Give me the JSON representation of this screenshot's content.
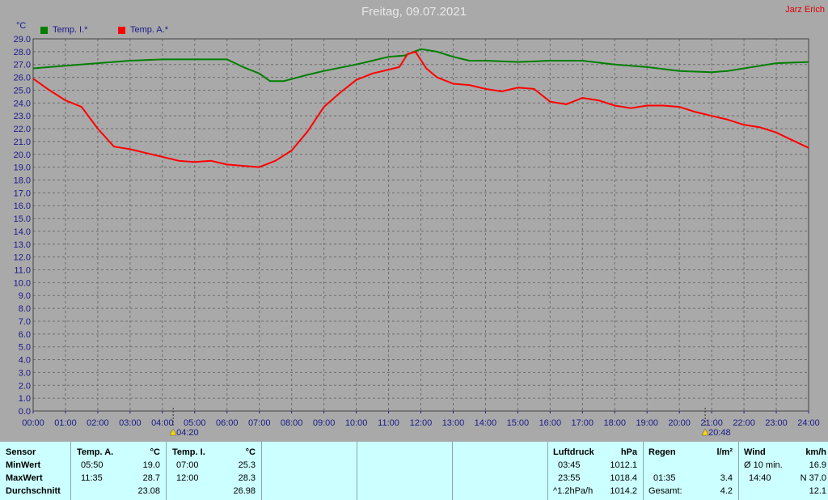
{
  "header": {
    "title": "Freitag, 09.07.2021",
    "author": "Jarz Erich",
    "unit": "°C"
  },
  "colors": {
    "background": "#a9a9a9",
    "inside": "#007f00",
    "outside": "#ff0000",
    "axis_text": "#1a1a8c",
    "table_bg": "#ccffff"
  },
  "chart_data": {
    "type": "line",
    "xlim": [
      "00:00",
      "24:00"
    ],
    "ylim": [
      0,
      29
    ],
    "ytick_step": 1.0,
    "grid": true,
    "legend_position": "top-left",
    "x_tick_labels": [
      "00:00",
      "01:00",
      "02:00",
      "03:00",
      "04:00",
      "05:00",
      "06:00",
      "07:00",
      "08:00",
      "09:00",
      "10:00",
      "11:00",
      "12:00",
      "13:00",
      "14:00",
      "15:00",
      "16:00",
      "17:00",
      "18:00",
      "19:00",
      "20:00",
      "21:00",
      "22:00",
      "23:00",
      "24:00"
    ],
    "y_tick_labels": [
      "0.0",
      "1.0",
      "2.0",
      "3.0",
      "4.0",
      "5.0",
      "6.0",
      "7.0",
      "8.0",
      "9.0",
      "10.0",
      "11.0",
      "12.0",
      "13.0",
      "14.0",
      "15.0",
      "16.0",
      "17.0",
      "18.0",
      "19.0",
      "20.0",
      "21.0",
      "22.0",
      "23.0",
      "24.0",
      "25.0",
      "26.0",
      "27.0",
      "28.0",
      "29.0"
    ],
    "markers": [
      {
        "label": "04:20",
        "x": "04:20"
      },
      {
        "label": "20:48",
        "x": "20:48"
      }
    ],
    "series": [
      {
        "name": "Temp. I.*",
        "color": "#007f00",
        "x": [
          "00:00",
          "01:00",
          "02:00",
          "03:00",
          "04:00",
          "05:00",
          "06:00",
          "06:30",
          "07:00",
          "07:20",
          "07:45",
          "08:30",
          "09:00",
          "10:00",
          "10:30",
          "11:00",
          "11:30",
          "12:00",
          "12:30",
          "13:00",
          "13:30",
          "14:00",
          "15:00",
          "16:00",
          "17:00",
          "18:00",
          "19:00",
          "20:00",
          "21:00",
          "21:30",
          "22:00",
          "22:30",
          "23:00",
          "24:00"
        ],
        "values": [
          26.7,
          26.9,
          27.1,
          27.3,
          27.4,
          27.4,
          27.4,
          26.8,
          26.3,
          25.7,
          25.7,
          26.2,
          26.5,
          27.0,
          27.3,
          27.6,
          27.7,
          28.2,
          28.0,
          27.6,
          27.3,
          27.3,
          27.2,
          27.3,
          27.3,
          27.0,
          26.8,
          26.5,
          26.4,
          26.5,
          26.7,
          26.9,
          27.1,
          27.2
        ]
      },
      {
        "name": "Temp. A.*",
        "color": "#ff0000",
        "x": [
          "00:00",
          "00:30",
          "01:00",
          "01:30",
          "02:00",
          "02:30",
          "03:00",
          "03:30",
          "04:00",
          "04:30",
          "05:00",
          "05:30",
          "06:00",
          "06:30",
          "07:00",
          "07:30",
          "08:00",
          "08:30",
          "09:00",
          "09:30",
          "10:00",
          "10:30",
          "11:00",
          "11:20",
          "11:35",
          "11:50",
          "12:10",
          "12:30",
          "13:00",
          "13:30",
          "14:00",
          "14:30",
          "15:00",
          "15:30",
          "16:00",
          "16:30",
          "17:00",
          "17:30",
          "18:00",
          "18:30",
          "19:00",
          "19:30",
          "20:00",
          "20:30",
          "21:00",
          "21:30",
          "22:00",
          "22:30",
          "23:00",
          "23:30",
          "24:00"
        ],
        "values": [
          25.9,
          25.0,
          24.2,
          23.7,
          22.0,
          20.6,
          20.4,
          20.1,
          19.8,
          19.5,
          19.4,
          19.5,
          19.2,
          19.1,
          19.0,
          19.5,
          20.3,
          21.8,
          23.7,
          24.8,
          25.8,
          26.3,
          26.6,
          26.8,
          27.8,
          28.0,
          26.7,
          26.0,
          25.5,
          25.4,
          25.1,
          24.9,
          25.2,
          25.1,
          24.1,
          23.9,
          24.4,
          24.2,
          23.8,
          23.6,
          23.8,
          23.8,
          23.7,
          23.3,
          23.0,
          22.7,
          22.3,
          22.1,
          21.7,
          21.1,
          20.5
        ]
      }
    ]
  },
  "stats": {
    "sensor": {
      "header": "Sensor",
      "rows": [
        "MinWert",
        "MaxWert",
        "Durchschnitt"
      ]
    },
    "temp_a": {
      "header": "Temp. A.",
      "unit": "°C",
      "min_time": "05:50",
      "min_val": "19.0",
      "max_time": "11:35",
      "max_val": "28.7",
      "avg": "23.08"
    },
    "temp_i": {
      "header": "Temp. I.",
      "unit": "°C",
      "min_time": "07:00",
      "min_val": "25.3",
      "max_time": "12:00",
      "max_val": "28.3",
      "avg": "26.98"
    },
    "luftdruck": {
      "header": "Luftdruck",
      "unit": "hPa",
      "min_time": "03:45",
      "min_val": "1012.1",
      "max_time": "23:55",
      "max_val": "1018.4",
      "trend_label": "^1.2hPa/h",
      "trend_val": "1014.2"
    },
    "regen": {
      "header": "Regen",
      "unit": "l/m²",
      "max_time": "01:35",
      "max_val": "3.4",
      "total_label": "Gesamt:",
      "total_val": "4.2"
    },
    "wind": {
      "header": "Wind",
      "unit": "km/h",
      "avg_label": "Ø 10 min.",
      "avg_val": "16.9",
      "max_time": "14:40",
      "max_val": "N 37.0",
      "third_val": "12.1"
    }
  }
}
